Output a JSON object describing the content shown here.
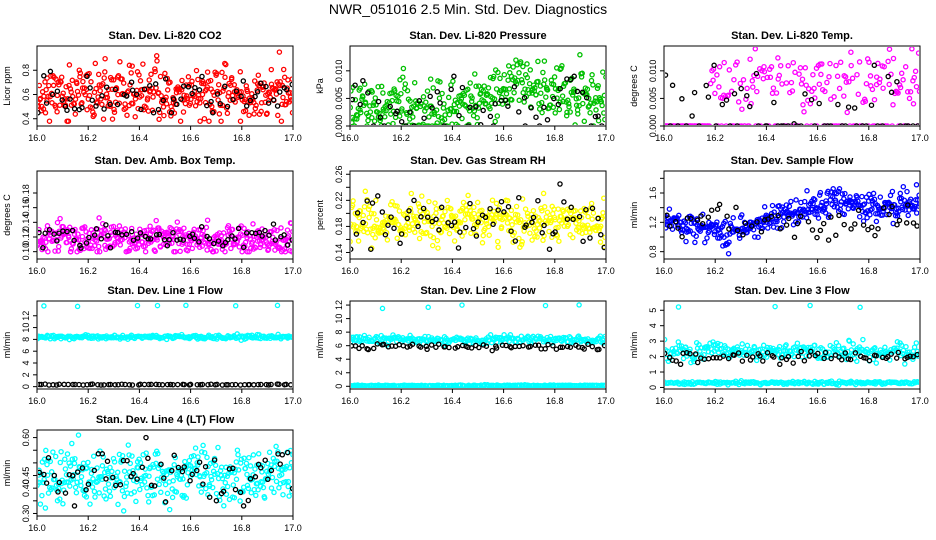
{
  "figure_title": "NWR_051016  2.5 Min. Std. Dev. Diagnostics",
  "colors": {
    "ref": "#000000"
  },
  "chart_data": [
    {
      "type": "scatter",
      "title": "Stan. Dev. Li-820 CO2",
      "xlabel": "",
      "ylabel": "Licor ppm",
      "xlim": [
        16.0,
        17.0
      ],
      "ylim": [
        0.34,
        1.0
      ],
      "xticks": [
        16.0,
        16.2,
        16.4,
        16.6,
        16.8,
        17.0
      ],
      "yticks": [
        0.4,
        0.6,
        0.8
      ],
      "xtick_labels": [
        "16.0",
        "16.2",
        "16.4",
        "16.6",
        "16.8",
        "17.0"
      ],
      "ytick_labels": [
        "0.4",
        "0.6",
        "0.8"
      ],
      "color": "#ff0000",
      "series": [
        {
          "name": "main",
          "color": "#ff0000",
          "x": [
            16.0,
            17.0
          ],
          "y_range": [
            0.38,
            0.95
          ],
          "n": 380,
          "center": 0.6,
          "spread": 0.11,
          "seed": 11
        },
        {
          "name": "reference",
          "color": "#000000",
          "x": [
            16.0,
            17.0
          ],
          "y_range": [
            0.45,
            0.82
          ],
          "n": 70,
          "center": 0.6,
          "spread": 0.08,
          "seed": 12
        }
      ]
    },
    {
      "type": "scatter",
      "title": "Stan. Dev. Li-820 Pressure",
      "xlabel": "",
      "ylabel": "kPa",
      "xlim": [
        16.0,
        17.0
      ],
      "ylim": [
        0.0,
        0.0145
      ],
      "xticks": [
        16.0,
        16.2,
        16.4,
        16.6,
        16.8,
        17.0
      ],
      "yticks": [
        0.0,
        0.005,
        0.01
      ],
      "xtick_labels": [
        "16.0",
        "16.2",
        "16.4",
        "16.6",
        "16.8",
        "17.0"
      ],
      "ytick_labels": [
        "0.000",
        "0.005",
        "0.010"
      ],
      "color": "#00c000",
      "series": [
        {
          "name": "main",
          "color": "#00c000",
          "x": [
            16.0,
            17.0
          ],
          "y_range": [
            0.0,
            0.013
          ],
          "n": 380,
          "center": 0.005,
          "spread": 0.0025,
          "seed": 21,
          "trend": [
            [
              16.0,
              0.004
            ],
            [
              16.2,
              0.004
            ],
            [
              16.3,
              0.002
            ],
            [
              16.5,
              0.005
            ],
            [
              16.65,
              0.0085
            ],
            [
              16.8,
              0.006
            ],
            [
              17.0,
              0.005
            ]
          ]
        },
        {
          "name": "reference",
          "color": "#000000",
          "x": [
            16.0,
            17.0
          ],
          "y_range": [
            0.0,
            0.009
          ],
          "n": 60,
          "center": 0.004,
          "spread": 0.003,
          "seed": 22
        }
      ]
    },
    {
      "type": "scatter",
      "title": "Stan. Dev. Li-820 Temp.",
      "xlabel": "",
      "ylabel": "degrees C",
      "xlim": [
        16.0,
        17.0
      ],
      "ylim": [
        0.0,
        0.0145
      ],
      "xticks": [
        16.0,
        16.2,
        16.4,
        16.6,
        16.8,
        17.0
      ],
      "yticks": [
        0.0,
        0.005,
        0.01
      ],
      "xtick_labels": [
        "16.0",
        "16.2",
        "16.4",
        "16.6",
        "16.8",
        "17.0"
      ],
      "ytick_labels": [
        "0.000",
        "0.005",
        "0.010"
      ],
      "color": "#ff00ff",
      "series": [
        {
          "name": "main",
          "color": "#ff00ff",
          "x": [
            16.0,
            17.0
          ],
          "y_range": [
            0.0,
            0.014
          ],
          "n": 260,
          "center": 0.008,
          "spread": 0.0025,
          "seed": 31,
          "baseline_before": 16.18,
          "zero_fraction": 0.35
        },
        {
          "name": "reference",
          "color": "#000000",
          "x": [
            16.0,
            17.0
          ],
          "y_range": [
            0.0,
            0.011
          ],
          "n": 60,
          "center": 0.006,
          "spread": 0.003,
          "seed": 32,
          "zero_fraction": 0.5
        }
      ]
    },
    {
      "type": "scatter",
      "title": "Stan. Dev. Amb. Box Temp.",
      "xlabel": "",
      "ylabel": "degrees C",
      "xlim": [
        16.0,
        17.0
      ],
      "ylim": [
        0.09,
        0.21
      ],
      "xticks": [
        16.0,
        16.2,
        16.4,
        16.6,
        16.8,
        17.0
      ],
      "yticks": [
        0.1,
        0.12,
        0.14,
        0.16,
        0.18
      ],
      "xtick_labels": [
        "16.0",
        "16.2",
        "16.4",
        "16.6",
        "16.8",
        "17.0"
      ],
      "ytick_labels": [
        "0.10",
        "0.12",
        "0.14",
        "0.16",
        "0.18"
      ],
      "color": "#ff00ff",
      "series": [
        {
          "name": "main",
          "color": "#ff00ff",
          "x": [
            16.0,
            17.0
          ],
          "y_range": [
            0.1,
            0.2
          ],
          "n": 380,
          "center": 0.117,
          "spread": 0.011,
          "seed": 41
        },
        {
          "name": "reference",
          "color": "#000000",
          "x": [
            16.0,
            17.0
          ],
          "y_range": [
            0.105,
            0.14
          ],
          "n": 70,
          "center": 0.12,
          "spread": 0.008,
          "seed": 42
        }
      ]
    },
    {
      "type": "scatter",
      "title": "Stan. Dev. Gas Stream RH",
      "xlabel": "",
      "ylabel": "percent",
      "xlim": [
        16.0,
        17.0
      ],
      "ylim": [
        0.13,
        0.265
      ],
      "xticks": [
        16.0,
        16.2,
        16.4,
        16.6,
        16.8,
        17.0
      ],
      "yticks": [
        0.14,
        0.16,
        0.18,
        0.2,
        0.22,
        0.24,
        0.26
      ],
      "xtick_labels": [
        "16.0",
        "16.2",
        "16.4",
        "16.6",
        "16.8",
        "17.0"
      ],
      "ytick_labels": [
        "0.14",
        "",
        "0.18",
        "",
        "0.22",
        "",
        "0.26"
      ],
      "color": "#ffff00",
      "series": [
        {
          "name": "main",
          "color": "#ffff00",
          "x": [
            16.0,
            17.0
          ],
          "y_range": [
            0.14,
            0.26
          ],
          "n": 380,
          "center": 0.188,
          "spread": 0.016,
          "seed": 51
        },
        {
          "name": "reference",
          "color": "#000000",
          "x": [
            16.0,
            17.0
          ],
          "y_range": [
            0.145,
            0.245
          ],
          "n": 70,
          "center": 0.19,
          "spread": 0.02,
          "seed": 52
        }
      ]
    },
    {
      "type": "scatter",
      "title": "Stan. Dev. Sample Flow",
      "xlabel": "",
      "ylabel": "ml/min",
      "xlim": [
        16.0,
        17.0
      ],
      "ylim": [
        0.7,
        1.9
      ],
      "xticks": [
        16.0,
        16.2,
        16.4,
        16.6,
        16.8,
        17.0
      ],
      "yticks": [
        0.8,
        1.0,
        1.2,
        1.4,
        1.6,
        1.8
      ],
      "xtick_labels": [
        "16.0",
        "16.2",
        "16.4",
        "16.6",
        "16.8",
        "17.0"
      ],
      "ytick_labels": [
        "0.8",
        "",
        "1.2",
        "",
        "1.6",
        ""
      ],
      "color": "#0000ff",
      "series": [
        {
          "name": "main",
          "color": "#0000ff",
          "x": [
            16.0,
            17.0
          ],
          "y_range": [
            0.72,
            1.85
          ],
          "n": 380,
          "center": 1.2,
          "spread": 0.09,
          "seed": 61,
          "trend": [
            [
              16.0,
              1.22
            ],
            [
              16.15,
              1.15
            ],
            [
              16.25,
              1.05
            ],
            [
              16.4,
              1.2
            ],
            [
              16.55,
              1.38
            ],
            [
              16.7,
              1.48
            ],
            [
              16.85,
              1.38
            ],
            [
              17.0,
              1.5
            ]
          ]
        },
        {
          "name": "reference",
          "color": "#000000",
          "x": [
            16.0,
            17.0
          ],
          "y_range": [
            0.9,
            1.65
          ],
          "n": 60,
          "center": 1.2,
          "spread": 0.12,
          "seed": 62
        }
      ]
    },
    {
      "type": "scatter",
      "title": "Stan. Dev. Line 1 Flow",
      "xlabel": "",
      "ylabel": "ml/min",
      "xlim": [
        16.0,
        17.0
      ],
      "ylim": [
        -0.4,
        14.5
      ],
      "xticks": [
        16.0,
        16.2,
        16.4,
        16.6,
        16.8,
        17.0
      ],
      "yticks": [
        0,
        2,
        4,
        6,
        8,
        10,
        12
      ],
      "xtick_labels": [
        "16.0",
        "16.2",
        "16.4",
        "16.6",
        "16.8",
        "17.0"
      ],
      "ytick_labels": [
        "0",
        "2",
        "4",
        "6",
        "8",
        "10",
        "12"
      ],
      "color": "#00ffff",
      "series": [
        {
          "name": "main",
          "color": "#00ffff",
          "x": [
            16.0,
            17.0
          ],
          "y_range": [
            7.8,
            9.0
          ],
          "n": 240,
          "center": 8.4,
          "spread": 0.18,
          "seed": 71
        },
        {
          "name": "outliers",
          "color": "#00ffff",
          "x": [
            16.0,
            17.0
          ],
          "y_range": [
            13.5,
            14.0
          ],
          "n": 7,
          "center": 13.7,
          "spread": 0.1,
          "seed": 72
        },
        {
          "name": "reference",
          "color": "#000000",
          "x": [
            16.0,
            17.0
          ],
          "y_range": [
            0.2,
            0.5
          ],
          "n": 70,
          "center": 0.35,
          "spread": 0.04,
          "seed": 73
        }
      ]
    },
    {
      "type": "scatter",
      "title": "Stan. Dev. Line 2 Flow",
      "xlabel": "",
      "ylabel": "ml/min",
      "xlim": [
        16.0,
        17.0
      ],
      "ylim": [
        -0.4,
        12.6
      ],
      "xticks": [
        16.0,
        16.2,
        16.4,
        16.6,
        16.8,
        17.0
      ],
      "yticks": [
        0,
        2,
        4,
        6,
        8,
        10,
        12
      ],
      "xtick_labels": [
        "16.0",
        "16.2",
        "16.4",
        "16.6",
        "16.8",
        "17.0"
      ],
      "ytick_labels": [
        "0",
        "2",
        "4",
        "6",
        "8",
        "10",
        "12"
      ],
      "color": "#00ffff",
      "series": [
        {
          "name": "main",
          "color": "#00ffff",
          "x": [
            16.0,
            17.0
          ],
          "y_range": [
            5.5,
            7.6
          ],
          "n": 240,
          "center": 6.9,
          "spread": 0.3,
          "seed": 81
        },
        {
          "name": "baseline",
          "color": "#00ffff",
          "x": [
            16.0,
            17.0
          ],
          "y_range": [
            0.0,
            0.3
          ],
          "n": 200,
          "center": 0.1,
          "spread": 0.05,
          "seed": 82
        },
        {
          "name": "outliers",
          "color": "#00ffff",
          "x": [
            16.0,
            17.0
          ],
          "y_range": [
            11.4,
            12.2
          ],
          "n": 5,
          "center": 11.8,
          "spread": 0.2,
          "seed": 83
        },
        {
          "name": "reference",
          "color": "#000000",
          "x": [
            16.0,
            17.0
          ],
          "y_range": [
            5.0,
            6.5
          ],
          "n": 70,
          "center": 5.8,
          "spread": 0.25,
          "seed": 84
        }
      ]
    },
    {
      "type": "scatter",
      "title": "Stan. Dev. Line 3 Flow",
      "xlabel": "",
      "ylabel": "ml/min",
      "xlim": [
        16.0,
        17.0
      ],
      "ylim": [
        -0.1,
        5.6
      ],
      "xticks": [
        16.0,
        16.2,
        16.4,
        16.6,
        16.8,
        17.0
      ],
      "yticks": [
        0,
        1,
        2,
        3,
        4,
        5
      ],
      "xtick_labels": [
        "16.0",
        "16.2",
        "16.4",
        "16.6",
        "16.8",
        "17.0"
      ],
      "ytick_labels": [
        "0",
        "1",
        "2",
        "3",
        "4",
        "5"
      ],
      "color": "#00ffff",
      "series": [
        {
          "name": "main",
          "color": "#00ffff",
          "x": [
            16.0,
            17.0
          ],
          "y_range": [
            1.5,
            3.1
          ],
          "n": 260,
          "center": 2.35,
          "spread": 0.3,
          "seed": 91
        },
        {
          "name": "baseline",
          "color": "#00ffff",
          "x": [
            16.0,
            17.0
          ],
          "y_range": [
            0.15,
            0.45
          ],
          "n": 200,
          "center": 0.3,
          "spread": 0.05,
          "seed": 92
        },
        {
          "name": "outliers",
          "color": "#00ffff",
          "x": [
            16.0,
            17.0
          ],
          "y_range": [
            5.1,
            5.4
          ],
          "n": 4,
          "center": 5.3,
          "spread": 0.08,
          "seed": 93
        },
        {
          "name": "reference",
          "color": "#000000",
          "x": [
            16.0,
            17.0
          ],
          "y_range": [
            1.5,
            2.5
          ],
          "n": 70,
          "center": 1.95,
          "spread": 0.18,
          "seed": 94
        }
      ]
    },
    {
      "type": "scatter",
      "title": "Stan. Dev. Line 4 (LT) Flow",
      "xlabel": "",
      "ylabel": "ml/min",
      "xlim": [
        16.0,
        17.0
      ],
      "ylim": [
        0.29,
        0.63
      ],
      "xticks": [
        16.0,
        16.2,
        16.4,
        16.6,
        16.8,
        17.0
      ],
      "yticks": [
        0.3,
        0.35,
        0.4,
        0.45,
        0.5,
        0.55,
        0.6
      ],
      "xtick_labels": [
        "16.0",
        "16.2",
        "16.4",
        "16.6",
        "16.8",
        "17.0"
      ],
      "ytick_labels": [
        "0.30",
        "",
        "0.40",
        "0.45",
        "",
        "",
        "0.60"
      ],
      "color": "#00ffff",
      "series": [
        {
          "name": "main",
          "color": "#00ffff",
          "x": [
            16.0,
            17.0
          ],
          "y_range": [
            0.31,
            0.61
          ],
          "n": 380,
          "center": 0.45,
          "spread": 0.055,
          "seed": 101
        },
        {
          "name": "reference",
          "color": "#000000",
          "x": [
            16.0,
            17.0
          ],
          "y_range": [
            0.33,
            0.6
          ],
          "n": 70,
          "center": 0.46,
          "spread": 0.06,
          "seed": 102
        }
      ]
    }
  ]
}
